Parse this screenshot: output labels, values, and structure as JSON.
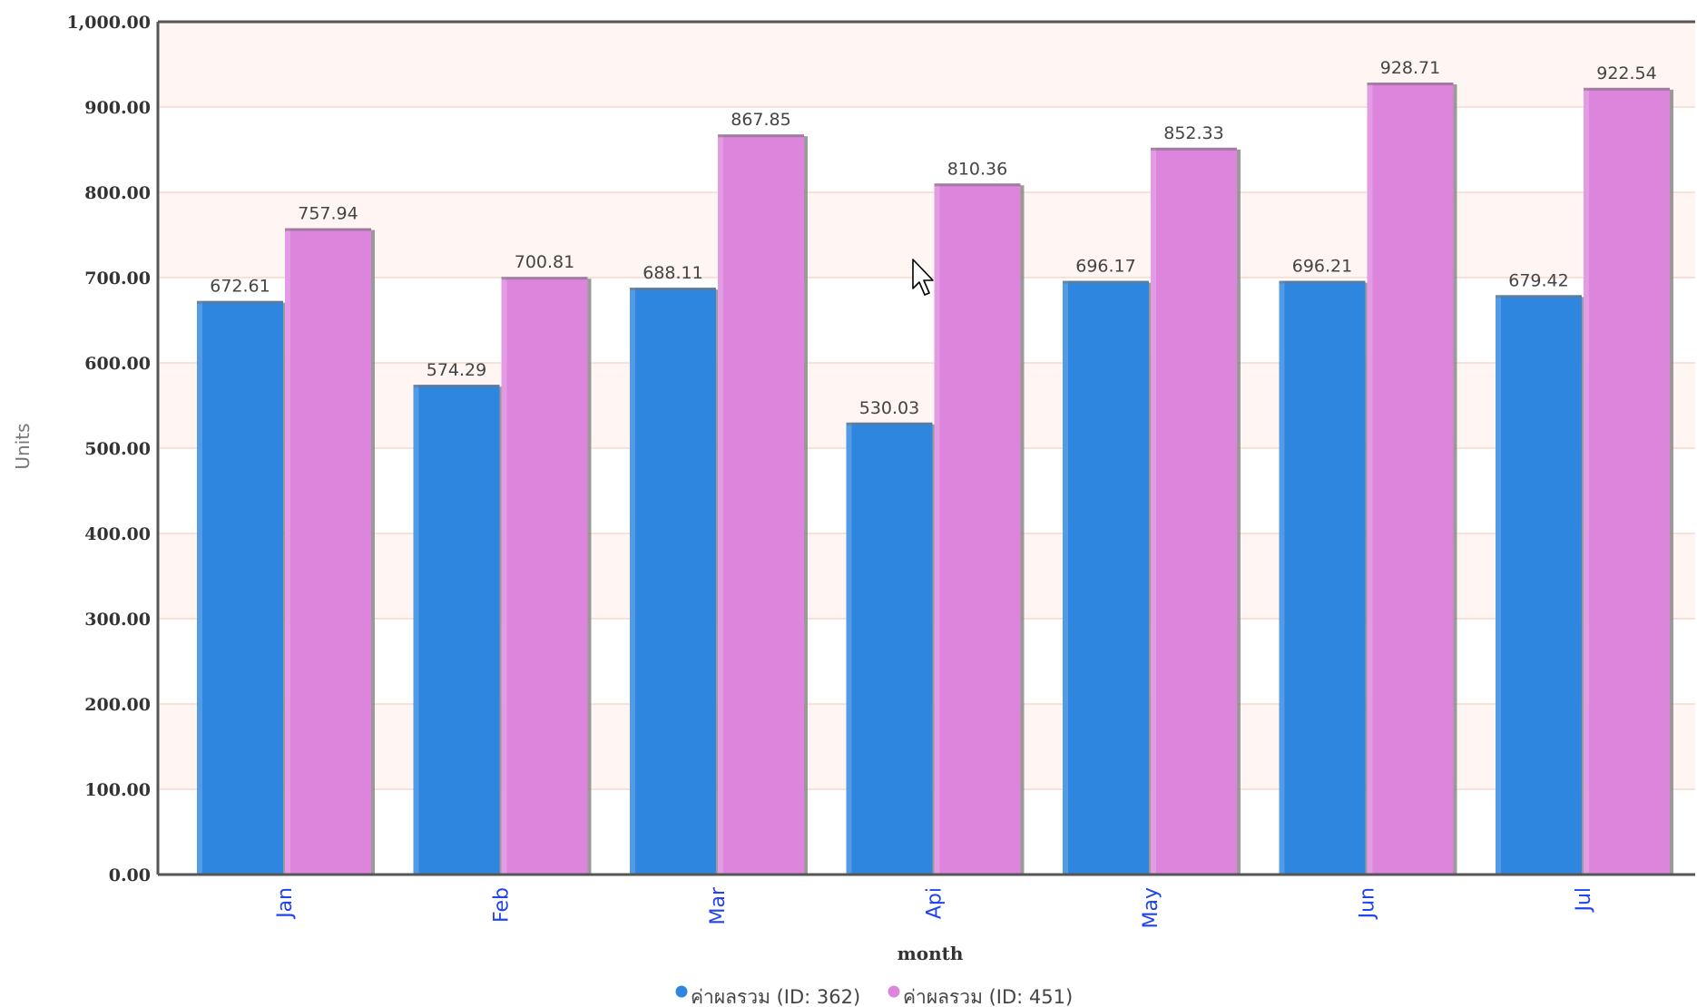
{
  "chart_data": {
    "type": "bar",
    "xlabel": "month",
    "ylabel": "Units",
    "ylim": [
      0,
      1000
    ],
    "yticks": [
      "0.00",
      "100.00",
      "200.00",
      "300.00",
      "400.00",
      "500.00",
      "600.00",
      "700.00",
      "800.00",
      "900.00",
      "1,000.00"
    ],
    "categories": [
      "Jan",
      "Feb",
      "Mar",
      "Api",
      "May",
      "Jun",
      "Jul"
    ],
    "series": [
      {
        "name": "ค่าผลรวม (ID: 362)",
        "color": "#2e86de",
        "values": [
          672.61,
          574.29,
          688.11,
          530.03,
          696.17,
          696.21,
          679.42
        ],
        "labels": [
          "672.61",
          "574.29",
          "688.11",
          "530.03",
          "696.17",
          "696.21",
          "679.42"
        ]
      },
      {
        "name": "ค่าผลรวม (ID: 451)",
        "color": "#dd85dd",
        "values": [
          757.94,
          700.81,
          867.85,
          810.36,
          852.33,
          928.71,
          922.54
        ],
        "labels": [
          "757.94",
          "700.81",
          "867.85",
          "810.36",
          "852.33",
          "928.71",
          "922.54"
        ]
      }
    ],
    "grid": true,
    "legend": "bottom-center"
  }
}
